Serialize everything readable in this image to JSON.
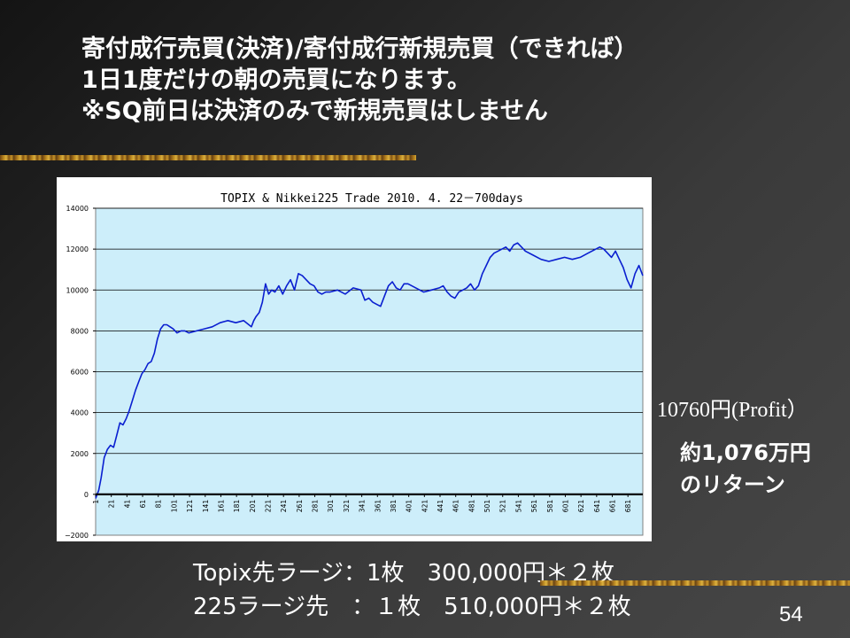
{
  "slide": {
    "title_lines": [
      "寄付成行売買(決済)/寄付成行新規売買（できれば）",
      "1日1度だけの朝の売買になります。",
      "※SQ前日は決済のみで新規売買はしません"
    ],
    "profit_note": "10760円(Profit）",
    "return_note_lines": [
      "約1,076万円",
      "のリターン"
    ],
    "footer_lines": [
      "Topix先ラージ：1枚　300,000円＊２枚",
      "225ラージ先　：１枚　510,000円＊２枚"
    ],
    "page_number": "54"
  },
  "colors": {
    "plot_background": "#cdeefa",
    "series_line": "#0a1fd0",
    "zero_line": "#000000",
    "grid_line": "#000000"
  },
  "chart_data": {
    "type": "line",
    "title": "TOPIX & Nikkei225  Trade  2010. 4. 22－700days",
    "xlabel": "",
    "ylabel": "",
    "ylim": [
      -2000,
      14000
    ],
    "xlim": [
      1,
      700
    ],
    "yticks": [
      -2000,
      0,
      2000,
      4000,
      6000,
      8000,
      10000,
      12000,
      14000
    ],
    "ytick_labels": [
      "−2000",
      "0",
      "2000",
      "4000",
      "6000",
      "8000",
      "10000",
      "12000",
      "14000"
    ],
    "xticks": [
      1,
      21,
      41,
      61,
      81,
      101,
      121,
      141,
      161,
      181,
      201,
      221,
      241,
      261,
      281,
      301,
      321,
      341,
      361,
      381,
      401,
      421,
      441,
      461,
      481,
      501,
      521,
      541,
      561,
      581,
      601,
      621,
      641,
      661,
      681
    ],
    "grid": true,
    "legend": "none",
    "series": [
      {
        "x": [
          1,
          5,
          8,
          12,
          16,
          20,
          24,
          28,
          32,
          36,
          40,
          44,
          48,
          52,
          56,
          60,
          64,
          68,
          72,
          76,
          80,
          84,
          88,
          92,
          96,
          100,
          105,
          110,
          115,
          120,
          130,
          140,
          150,
          160,
          170,
          180,
          190,
          200,
          203,
          206,
          210,
          214,
          218,
          222,
          226,
          230,
          235,
          240,
          245,
          250,
          255,
          260,
          265,
          270,
          275,
          280,
          285,
          290,
          295,
          300,
          310,
          320,
          330,
          340,
          345,
          350,
          355,
          360,
          365,
          370,
          375,
          380,
          385,
          390,
          395,
          400,
          410,
          420,
          430,
          440,
          445,
          450,
          455,
          460,
          465,
          470,
          475,
          480,
          485,
          490,
          495,
          500,
          505,
          510,
          515,
          520,
          525,
          530,
          535,
          540,
          545,
          550,
          560,
          570,
          580,
          590,
          600,
          610,
          620,
          630,
          640,
          645,
          650,
          655,
          660,
          665,
          670,
          675,
          680,
          685,
          690,
          695,
          700
        ],
        "y": [
          -200,
          200,
          800,
          1800,
          2200,
          2400,
          2300,
          2900,
          3500,
          3400,
          3700,
          4100,
          4600,
          5100,
          5500,
          5900,
          6100,
          6400,
          6500,
          6900,
          7600,
          8100,
          8300,
          8300,
          8200,
          8100,
          7900,
          8000,
          8000,
          7900,
          8000,
          8100,
          8200,
          8400,
          8500,
          8400,
          8500,
          8200,
          8500,
          8700,
          8900,
          9400,
          10300,
          9800,
          10000,
          9900,
          10200,
          9800,
          10200,
          10500,
          10000,
          10800,
          10700,
          10500,
          10300,
          10200,
          9900,
          9800,
          9900,
          9900,
          10000,
          9800,
          10100,
          10000,
          9500,
          9600,
          9400,
          9300,
          9200,
          9700,
          10200,
          10400,
          10100,
          10000,
          10300,
          10300,
          10100,
          9900,
          10000,
          10100,
          10200,
          9900,
          9700,
          9600,
          9900,
          10000,
          10100,
          10300,
          10000,
          10200,
          10800,
          11200,
          11600,
          11800,
          11900,
          12000,
          12100,
          11900,
          12200,
          12300,
          12100,
          11900,
          11700,
          11500,
          11400,
          11500,
          11600,
          11500,
          11600,
          11800,
          12000,
          12100,
          12000,
          11800,
          11600,
          11900,
          11500,
          11100,
          10500,
          10100,
          10800,
          11200,
          10700
        ]
      }
    ]
  }
}
